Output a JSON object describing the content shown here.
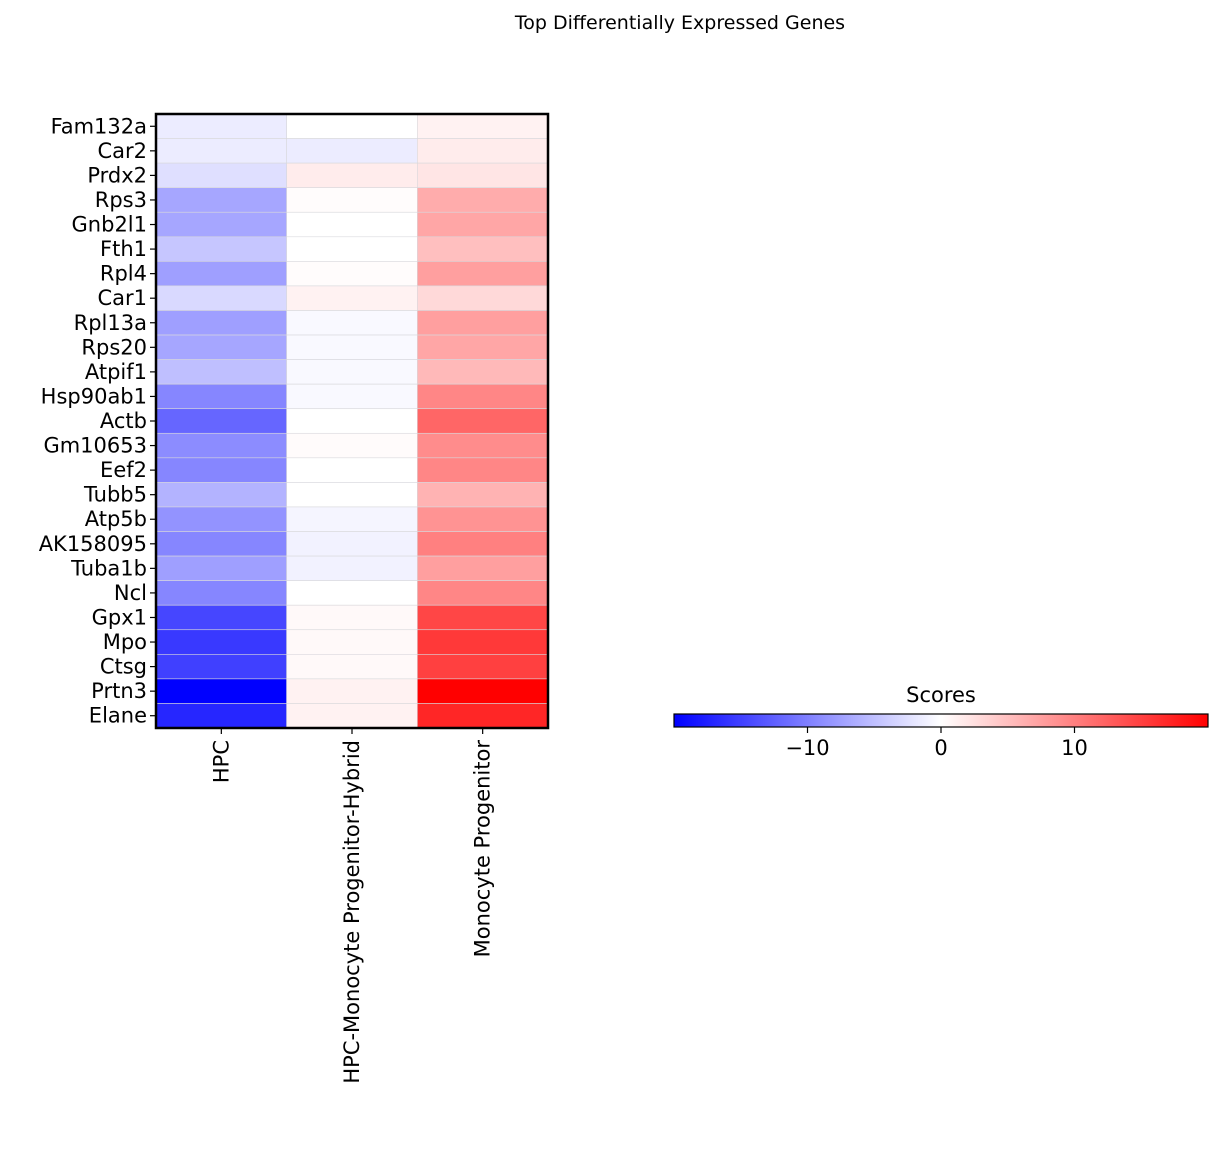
{
  "chart_data": {
    "type": "heatmap",
    "title": "Top Differentially Expressed Genes",
    "rows": [
      "Fam132a",
      "Car2",
      "Prdx2",
      "Rps3",
      "Gnb2l1",
      "Fth1",
      "Rpl4",
      "Car1",
      "Rpl13a",
      "Rps20",
      "Atpif1",
      "Hsp90ab1",
      "Actb",
      "Gm10653",
      "Eef2",
      "Tubb5",
      "Atp5b",
      "AK158095",
      "Tuba1b",
      "Ncl",
      "Gpx1",
      "Mpo",
      "Ctsg",
      "Prtn3",
      "Elane"
    ],
    "columns": [
      "HPC",
      "HPC-Monocyte Progenitor-Hybrid",
      "Monocyte Progenitor"
    ],
    "values": [
      [
        -1.5,
        0.0,
        1.0
      ],
      [
        -1.5,
        -1.5,
        1.5
      ],
      [
        -2.5,
        1.5,
        2.0
      ],
      [
        -7.0,
        0.2,
        6.5
      ],
      [
        -7.0,
        0.0,
        7.0
      ],
      [
        -4.5,
        0.0,
        5.0
      ],
      [
        -7.5,
        0.2,
        7.5
      ],
      [
        -3.0,
        1.0,
        3.0
      ],
      [
        -7.5,
        -0.5,
        7.5
      ],
      [
        -7.0,
        -0.5,
        7.0
      ],
      [
        -5.0,
        -0.5,
        5.5
      ],
      [
        -9.5,
        -0.5,
        9.5
      ],
      [
        -12.0,
        0.0,
        12.0
      ],
      [
        -9.0,
        0.3,
        9.0
      ],
      [
        -9.5,
        0.0,
        9.5
      ],
      [
        -6.0,
        0.0,
        6.0
      ],
      [
        -8.5,
        -0.8,
        8.5
      ],
      [
        -9.5,
        -1.0,
        10.0
      ],
      [
        -7.5,
        -1.0,
        7.5
      ],
      [
        -9.5,
        0.0,
        9.5
      ],
      [
        -14.5,
        0.5,
        14.5
      ],
      [
        -15.5,
        0.5,
        15.5
      ],
      [
        -15.0,
        0.5,
        15.0
      ],
      [
        -20.0,
        1.0,
        20.0
      ],
      [
        -17.0,
        1.0,
        17.0
      ]
    ],
    "colorscale": {
      "low": "#0000ff",
      "mid": "#ffffff",
      "high": "#ff0000"
    },
    "vmin": -20,
    "vmax": 20,
    "colorbar": {
      "label": "Scores",
      "ticks": [
        -10,
        0,
        10
      ],
      "tick_labels": [
        "−10",
        "0",
        "10"
      ]
    }
  }
}
